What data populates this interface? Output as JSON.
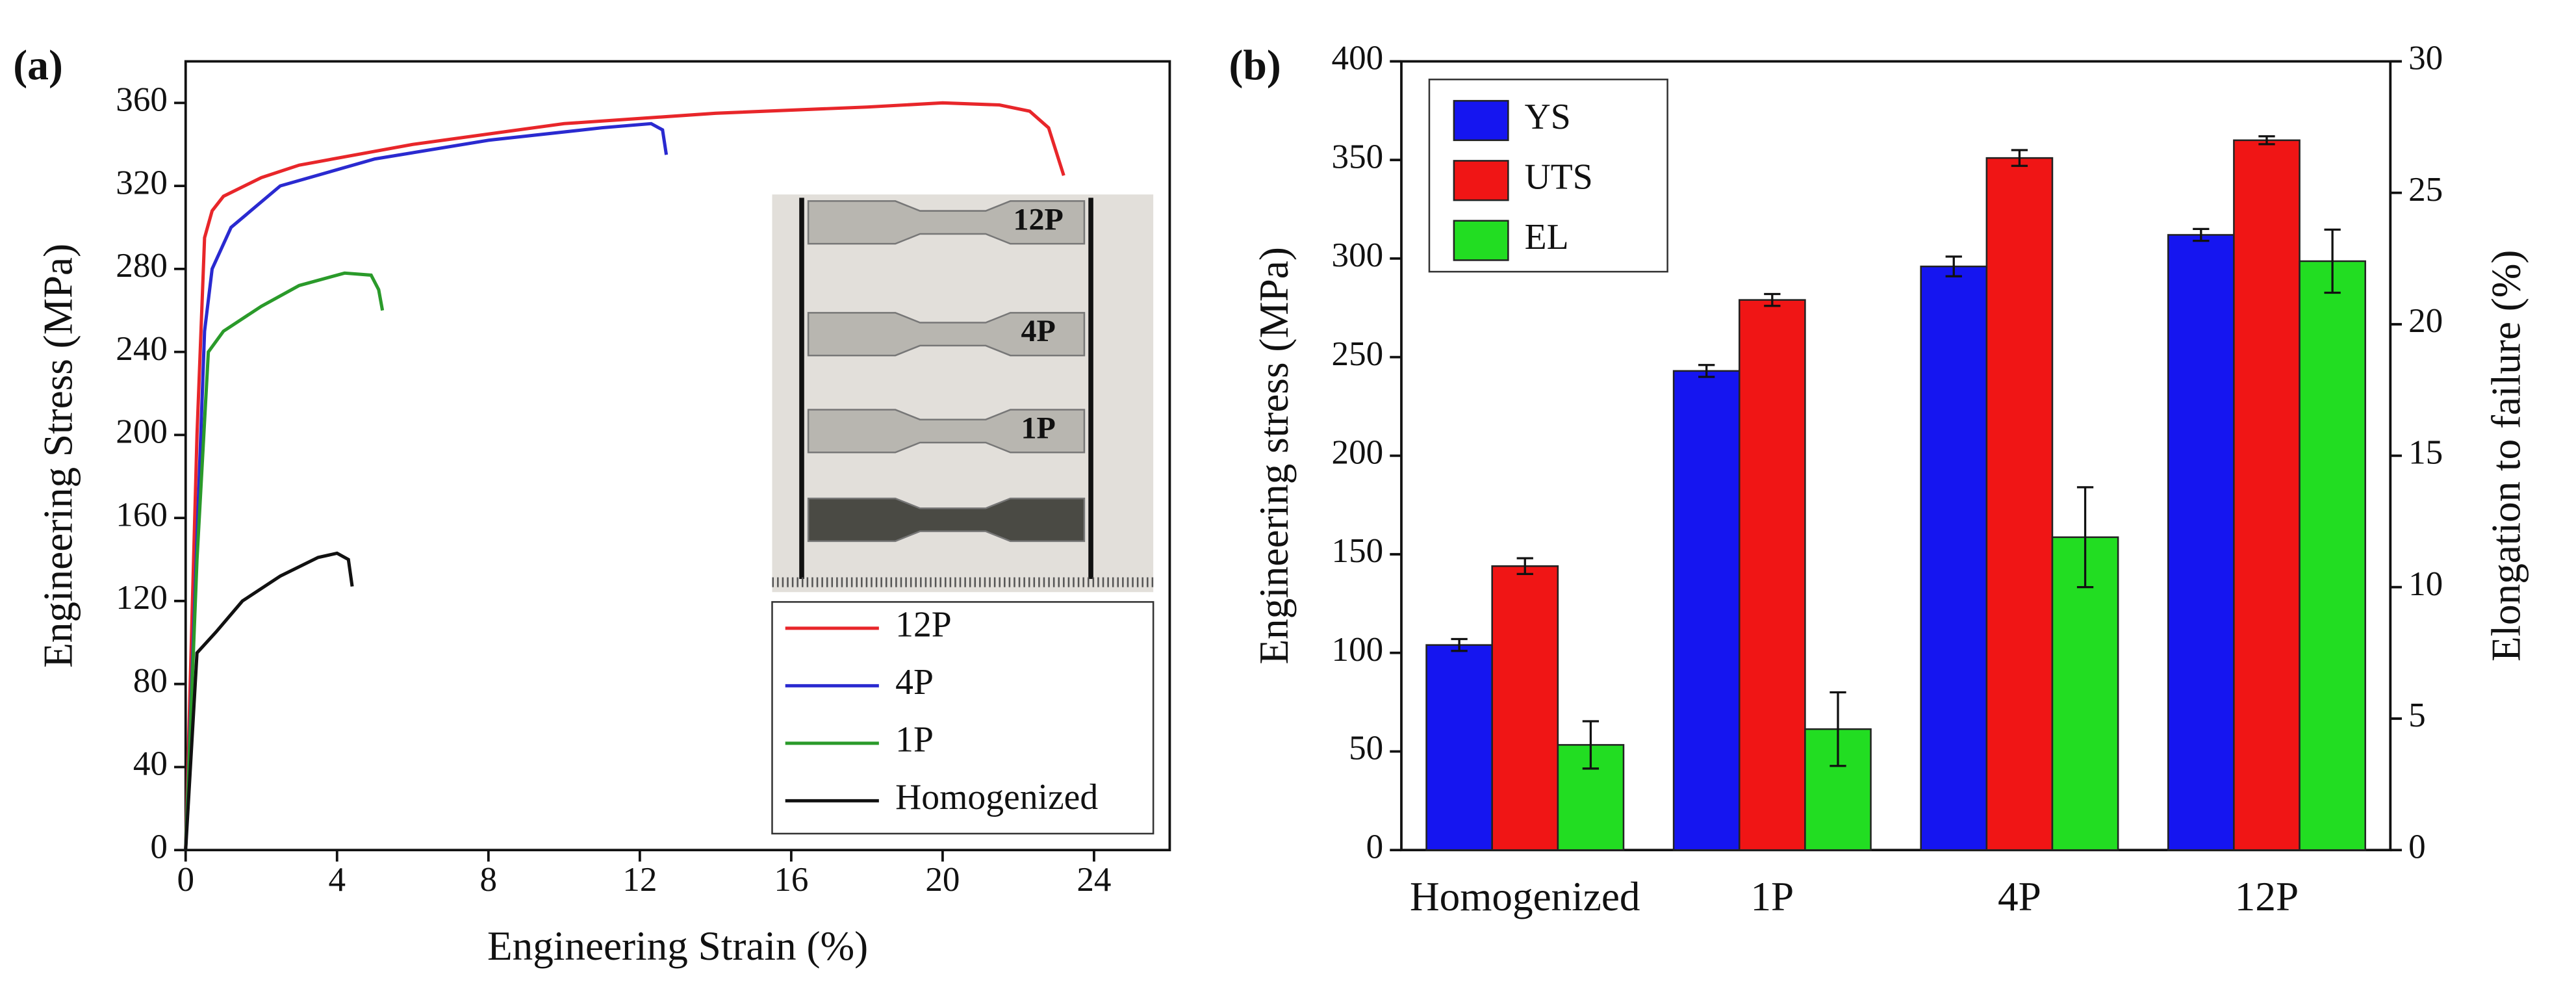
{
  "chart_data": [
    {
      "type": "line",
      "panel_label": "(a)",
      "x_label": "Engineering Strain (%)",
      "y_label": "Engineering Stress (MPa)",
      "xlim": [
        0,
        26
      ],
      "xticks": [
        0,
        4,
        8,
        12,
        16,
        20,
        24
      ],
      "ylim": [
        0,
        380
      ],
      "yticks": [
        0,
        40,
        80,
        120,
        160,
        200,
        240,
        280,
        320,
        360
      ],
      "legend": "lower right",
      "inset_labels": [
        "12P",
        "4P",
        "1P"
      ],
      "series": [
        {
          "name": "12P",
          "color": "#e8262a",
          "x": [
            0,
            0.3,
            0.5,
            0.7,
            1,
            2,
            3,
            6,
            10,
            14,
            18,
            20,
            21.5,
            22.3,
            22.8,
            23.2
          ],
          "values": [
            0,
            200,
            295,
            308,
            315,
            324,
            330,
            340,
            350,
            355,
            358,
            360,
            359,
            356,
            348,
            325
          ]
        },
        {
          "name": "4P",
          "color": "#2a2ad0",
          "x": [
            0,
            0.3,
            0.5,
            0.7,
            1.2,
            2.5,
            5,
            8,
            11,
            12.3,
            12.6,
            12.7
          ],
          "values": [
            0,
            150,
            250,
            280,
            300,
            320,
            333,
            342,
            348,
            350,
            347,
            335
          ]
        },
        {
          "name": "1P",
          "color": "#2a9a2a",
          "x": [
            0,
            0.3,
            0.6,
            1,
            2,
            3,
            4.2,
            4.9,
            5.1,
            5.2
          ],
          "values": [
            0,
            140,
            240,
            250,
            262,
            272,
            278,
            277,
            270,
            260
          ]
        },
        {
          "name": "Homogenized",
          "color": "#111111",
          "x": [
            0,
            0.3,
            0.8,
            1.5,
            2.5,
            3.5,
            4,
            4.3,
            4.4
          ],
          "values": [
            0,
            95,
            105,
            120,
            132,
            141,
            143,
            140,
            127
          ]
        }
      ]
    },
    {
      "type": "bar",
      "panel_label": "(b)",
      "y_label": "Engineering stress (MPa)",
      "y2_label": "Elongation to failure (%)",
      "categories": [
        "Homogenized",
        "1P",
        "4P",
        "12P"
      ],
      "ylim": [
        0,
        400
      ],
      "yticks": [
        0,
        50,
        100,
        150,
        200,
        250,
        300,
        350,
        400
      ],
      "y2lim": [
        0,
        30
      ],
      "y2ticks": [
        0,
        5,
        10,
        15,
        20,
        25,
        30
      ],
      "legend": "upper left",
      "series": [
        {
          "name": "YS",
          "color": "#1515f0",
          "values": [
            104,
            243,
            296,
            312
          ],
          "errors": [
            3,
            3,
            5,
            3
          ]
        },
        {
          "name": "UTS",
          "color": "#f01515",
          "values": [
            144,
            279,
            351,
            360
          ],
          "errors": [
            4,
            3,
            4,
            2
          ]
        },
        {
          "name": "EL",
          "color": "#22dd22",
          "axis": "y2",
          "values": [
            4.0,
            4.6,
            11.9,
            22.4
          ],
          "errors": [
            0.9,
            1.4,
            1.9,
            1.2
          ]
        }
      ]
    }
  ]
}
